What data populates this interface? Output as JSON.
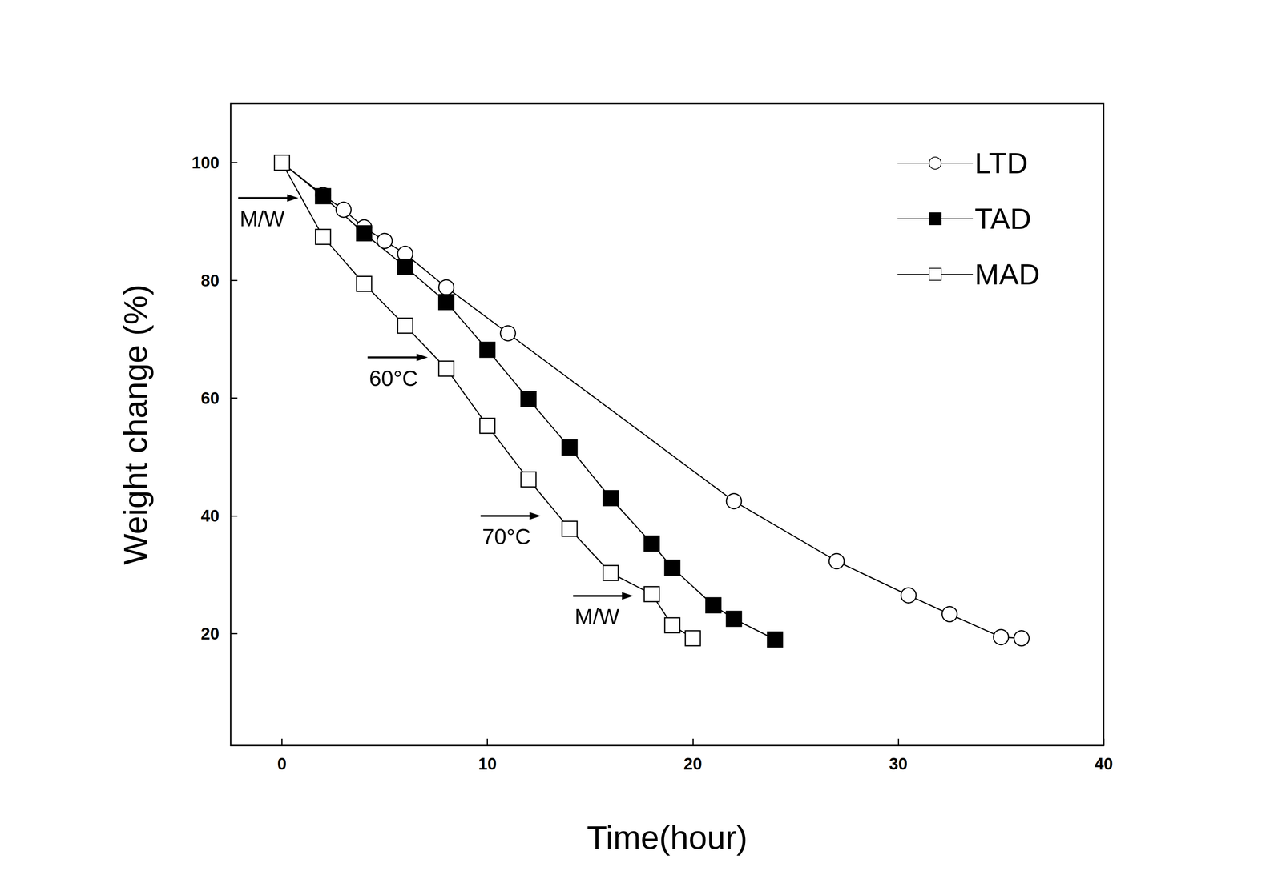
{
  "chart_data": {
    "type": "line",
    "x_label": "Time(hour)",
    "y_label": "Weight change (%)",
    "xlim": [
      -2.5,
      40
    ],
    "xticks": [
      0,
      10,
      20,
      30,
      40
    ],
    "ylim": [
      1,
      110
    ],
    "yticks": [
      20,
      40,
      60,
      80,
      100
    ],
    "grid": false,
    "legend": "upper right",
    "series": [
      {
        "name": "LTD",
        "color": "#000000",
        "marker": "open_circle",
        "x": [
          0,
          2,
          3,
          4,
          5,
          6,
          8,
          11,
          22,
          27,
          30.5,
          32.5,
          35,
          36
        ],
        "values": [
          100,
          94.5,
          92,
          89,
          86.7,
          84.5,
          78.8,
          71,
          42.5,
          32.3,
          26.5,
          23.3,
          19.4,
          19.2
        ]
      },
      {
        "name": "TAD",
        "color": "#000000",
        "marker": "filled_square",
        "x": [
          0,
          2,
          4,
          6,
          8,
          10,
          12,
          14,
          16,
          18,
          19,
          21,
          22,
          24
        ],
        "values": [
          100,
          94.3,
          88,
          82.3,
          76.3,
          68.2,
          59.8,
          51.6,
          43,
          35.3,
          31.2,
          24.8,
          22.5,
          19
        ]
      },
      {
        "name": "MAD",
        "color": "#000000",
        "marker": "open_square",
        "x": [
          0,
          2,
          4,
          6,
          8,
          10,
          12,
          14,
          16,
          18,
          19,
          20
        ],
        "values": [
          100,
          87.4,
          79.4,
          72.3,
          65,
          55.3,
          46.2,
          37.8,
          30.3,
          26.7,
          21.4,
          19.2
        ]
      }
    ],
    "annotations": [
      {
        "text": "M/W",
        "x": 0.8,
        "y": 94
      },
      {
        "text": "60°C",
        "x": 7.1,
        "y": 66.9
      },
      {
        "text": "70°C",
        "x": 12.6,
        "y": 40
      },
      {
        "text": "M/W",
        "x": 17.1,
        "y": 26.4
      }
    ]
  }
}
